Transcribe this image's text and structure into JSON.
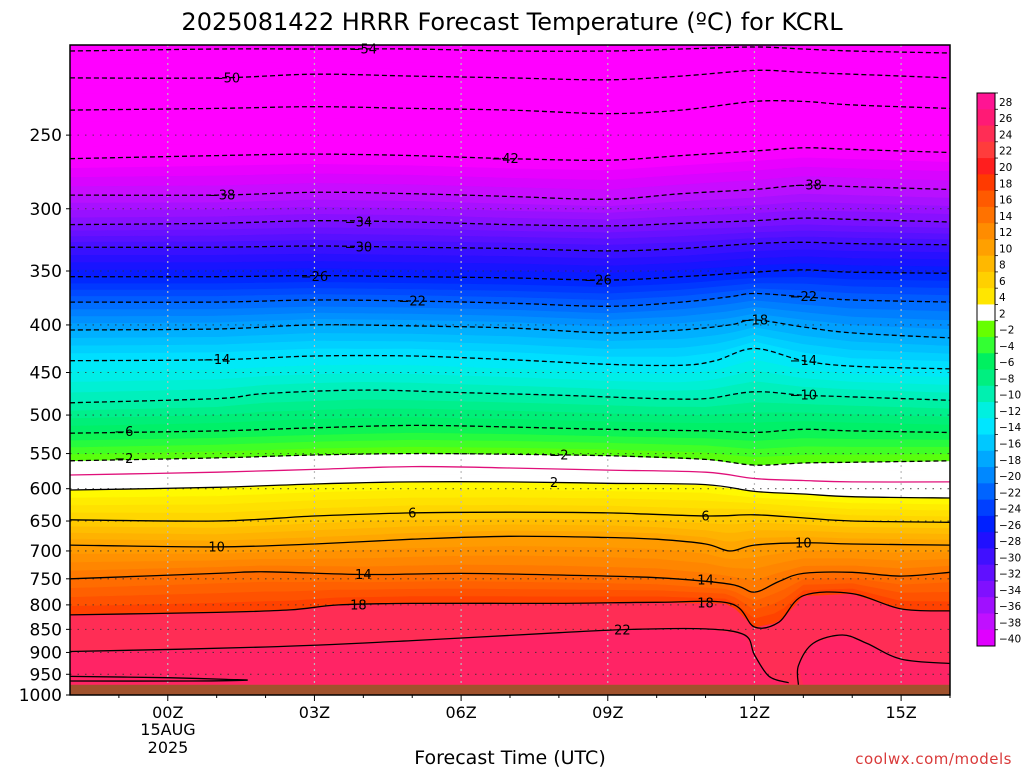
{
  "chart_data": {
    "type": "heatmap",
    "title": "2025081422 HRRR Forecast Temperature (ºC) for KCRL",
    "xlabel": "Forecast Time (UTC)",
    "ylabel": "",
    "x_ticks": [
      "00Z",
      "03Z",
      "06Z",
      "09Z",
      "12Z",
      "15Z"
    ],
    "x_hours": [
      0,
      3,
      6,
      9,
      12,
      15
    ],
    "x_range_hours": [
      -2,
      16
    ],
    "date_label": [
      "15AUG",
      "2025"
    ],
    "y_scale": "log-pressure",
    "y_range_hpa": [
      1000,
      200
    ],
    "y_ticks": [
      250,
      300,
      350,
      400,
      450,
      500,
      550,
      600,
      650,
      700,
      750,
      800,
      850,
      900,
      950,
      1000
    ],
    "ground_color": "#a0522d",
    "ground_level_hpa": 975,
    "colorbar": {
      "levels": [
        28,
        26,
        24,
        22,
        20,
        18,
        16,
        14,
        12,
        10,
        8,
        6,
        4,
        2,
        -2,
        -4,
        -6,
        -8,
        -10,
        -12,
        -14,
        -16,
        -18,
        -20,
        -22,
        -24,
        -26,
        -28,
        -30,
        -32,
        -34,
        -36,
        -38,
        -40
      ],
      "labels": [
        "28",
        "26",
        "24",
        "22",
        "20",
        "18",
        "16",
        "14",
        "12",
        "10",
        "8",
        "6",
        "4",
        "2",
        "−2",
        "−4",
        "−6",
        "−8",
        "−10",
        "−12",
        "−14",
        "−16",
        "−18",
        "−20",
        "−22",
        "−24",
        "−26",
        "−28",
        "−30",
        "−32",
        "−34",
        "−36",
        "−38",
        "−40"
      ]
    },
    "isotherms": [
      {
        "value": 22,
        "label": "22",
        "style": "solid",
        "points": [
          [
            -2,
            898
          ],
          [
            2,
            888
          ],
          [
            5,
            874
          ],
          [
            8,
            857
          ],
          [
            9.5,
            850
          ],
          [
            11,
            849
          ],
          [
            11.8,
            862
          ],
          [
            12.0,
            905
          ],
          [
            12.3,
            955
          ],
          [
            12.7,
            970
          ]
        ]
      },
      {
        "value": 18,
        "label": "18",
        "style": "solid",
        "points": [
          [
            -2,
            820
          ],
          [
            1,
            815
          ],
          [
            2.5,
            810
          ],
          [
            3.5,
            800
          ],
          [
            5,
            797
          ],
          [
            8,
            797
          ],
          [
            10,
            795
          ],
          [
            11.5,
            797
          ],
          [
            12,
            845
          ],
          [
            12.5,
            835
          ],
          [
            13,
            782
          ],
          [
            14,
            778
          ],
          [
            15,
            808
          ],
          [
            16,
            812
          ]
        ]
      },
      {
        "value": 14,
        "label": "14",
        "style": "solid",
        "points": [
          [
            -2,
            750
          ],
          [
            1,
            740
          ],
          [
            2,
            737
          ],
          [
            4,
            742
          ],
          [
            6,
            740
          ],
          [
            8,
            743
          ],
          [
            10,
            748
          ],
          [
            11.5,
            760
          ],
          [
            12,
            775
          ],
          [
            12.5,
            755
          ],
          [
            13,
            740
          ],
          [
            14,
            738
          ],
          [
            15,
            745
          ],
          [
            16,
            738
          ]
        ]
      },
      {
        "value": 10,
        "label": "10",
        "style": "solid",
        "points": [
          [
            -2,
            690
          ],
          [
            1,
            693
          ],
          [
            3,
            688
          ],
          [
            5,
            680
          ],
          [
            7,
            675
          ],
          [
            9,
            677
          ],
          [
            10,
            680
          ],
          [
            11,
            688
          ],
          [
            11.5,
            700
          ],
          [
            12,
            690
          ],
          [
            13,
            686
          ],
          [
            14,
            688
          ],
          [
            16,
            690
          ]
        ]
      },
      {
        "value": 6,
        "label": "6",
        "style": "solid",
        "points": [
          [
            -2,
            648
          ],
          [
            1,
            650
          ],
          [
            3,
            642
          ],
          [
            5,
            637
          ],
          [
            7,
            636
          ],
          [
            9,
            637
          ],
          [
            11,
            642
          ],
          [
            12,
            640
          ],
          [
            13,
            645
          ],
          [
            14,
            650
          ],
          [
            16,
            652
          ]
        ]
      },
      {
        "value": 2,
        "label": "2",
        "style": "solid",
        "points": [
          [
            -2,
            602
          ],
          [
            1,
            598
          ],
          [
            3,
            593
          ],
          [
            5,
            590
          ],
          [
            7,
            590
          ],
          [
            9,
            592
          ],
          [
            11,
            594
          ],
          [
            12,
            604
          ],
          [
            13,
            608
          ],
          [
            14,
            612
          ],
          [
            16,
            614
          ]
        ]
      },
      {
        "value": -2,
        "label": "2",
        "style": "dashed",
        "points": [
          [
            -2,
            560
          ],
          [
            1,
            556
          ],
          [
            3,
            552
          ],
          [
            5,
            550
          ],
          [
            7,
            551
          ],
          [
            9,
            553
          ],
          [
            11,
            558
          ],
          [
            12,
            566
          ],
          [
            13,
            563
          ],
          [
            14,
            562
          ],
          [
            16,
            560
          ]
        ]
      },
      {
        "value": -6,
        "label": "6",
        "style": "dashed",
        "points": [
          [
            -2,
            523
          ],
          [
            1,
            520
          ],
          [
            3,
            516
          ],
          [
            5,
            513
          ],
          [
            7,
            515
          ],
          [
            9,
            518
          ],
          [
            11,
            520
          ],
          [
            12,
            522
          ],
          [
            13,
            518
          ],
          [
            14,
            520
          ],
          [
            16,
            522
          ]
        ]
      },
      {
        "value": -10,
        "label": "10",
        "style": "dashed",
        "points": [
          [
            -2,
            485
          ],
          [
            1,
            480
          ],
          [
            2,
            474
          ],
          [
            4,
            470
          ],
          [
            6,
            473
          ],
          [
            8,
            476
          ],
          [
            10,
            480
          ],
          [
            11,
            480
          ],
          [
            12,
            472
          ],
          [
            13,
            476
          ],
          [
            14,
            478
          ],
          [
            16,
            482
          ]
        ]
      },
      {
        "value": -14,
        "label": "14",
        "style": "dashed",
        "points": [
          [
            -2,
            437
          ],
          [
            1,
            436
          ],
          [
            3,
            432
          ],
          [
            5,
            432
          ],
          [
            7,
            436
          ],
          [
            9,
            441
          ],
          [
            10.5,
            442
          ],
          [
            11.2,
            437
          ],
          [
            12,
            424
          ],
          [
            13,
            437
          ],
          [
            14,
            443
          ],
          [
            16,
            446
          ]
        ]
      },
      {
        "value": -18,
        "label": "18",
        "style": "dashed",
        "points": [
          [
            -2,
            405
          ],
          [
            1,
            404
          ],
          [
            3,
            400
          ],
          [
            5,
            401
          ],
          [
            7,
            403
          ],
          [
            9,
            408
          ],
          [
            10.5,
            405
          ],
          [
            11.5,
            400
          ],
          [
            12,
            395
          ],
          [
            13,
            402
          ],
          [
            14,
            408
          ],
          [
            16,
            413
          ]
        ]
      },
      {
        "value": -22,
        "label": "22",
        "style": "dashed",
        "points": [
          [
            -2,
            378
          ],
          [
            1,
            378
          ],
          [
            3,
            376
          ],
          [
            5,
            377
          ],
          [
            7,
            379
          ],
          [
            9,
            382
          ],
          [
            10.5,
            378
          ],
          [
            11.5,
            373
          ],
          [
            12,
            370
          ],
          [
            13,
            373
          ],
          [
            14,
            376
          ],
          [
            16,
            378
          ]
        ]
      },
      {
        "value": -26,
        "label": "26",
        "style": "dashed",
        "points": [
          [
            -2,
            355
          ],
          [
            1,
            355
          ],
          [
            3,
            354
          ],
          [
            5,
            355
          ],
          [
            7,
            356
          ],
          [
            9,
            358
          ],
          [
            10.5,
            355
          ],
          [
            12,
            351
          ],
          [
            13,
            349
          ],
          [
            14,
            351
          ],
          [
            16,
            352
          ]
        ]
      },
      {
        "value": -30,
        "label": "30",
        "style": "dashed",
        "points": [
          [
            -2,
            330
          ],
          [
            1,
            330
          ],
          [
            3,
            329
          ],
          [
            5,
            330
          ],
          [
            7,
            331
          ],
          [
            9,
            333
          ],
          [
            10.5,
            331
          ],
          [
            12,
            327
          ],
          [
            13,
            326
          ],
          [
            14,
            327
          ],
          [
            16,
            328
          ]
        ]
      },
      {
        "value": -34,
        "label": "34",
        "style": "dashed",
        "points": [
          [
            -2,
            312
          ],
          [
            1,
            311
          ],
          [
            3,
            309
          ],
          [
            5,
            310
          ],
          [
            7,
            312
          ],
          [
            9,
            313
          ],
          [
            10.5,
            311
          ],
          [
            12,
            309
          ],
          [
            13,
            307
          ],
          [
            14,
            308
          ],
          [
            16,
            310
          ]
        ]
      },
      {
        "value": -38,
        "label": "38",
        "style": "dashed",
        "points": [
          [
            -2,
            290
          ],
          [
            1,
            290
          ],
          [
            3,
            288
          ],
          [
            5,
            289
          ],
          [
            7,
            291
          ],
          [
            9,
            293
          ],
          [
            10.5,
            289
          ],
          [
            12,
            286
          ],
          [
            13,
            283
          ],
          [
            14,
            284
          ],
          [
            16,
            286
          ]
        ]
      },
      {
        "value": -42,
        "label": "42",
        "style": "dashed",
        "points": [
          [
            -2,
            265
          ],
          [
            1,
            263
          ],
          [
            3,
            262
          ],
          [
            5,
            263
          ],
          [
            7,
            265
          ],
          [
            9,
            266
          ],
          [
            10.5,
            263
          ],
          [
            12,
            260
          ],
          [
            13,
            258
          ],
          [
            14,
            259
          ],
          [
            16,
            261
          ]
        ]
      },
      {
        "value": -46,
        "label": "",
        "style": "dashed",
        "points": [
          [
            -2,
            235
          ],
          [
            1,
            234
          ],
          [
            3,
            233
          ],
          [
            5,
            234
          ],
          [
            7,
            235
          ],
          [
            9,
            237
          ],
          [
            10.5,
            235
          ],
          [
            12,
            230
          ],
          [
            13,
            230
          ],
          [
            14,
            232
          ],
          [
            16,
            234
          ]
        ]
      },
      {
        "value": -50,
        "label": "50",
        "style": "dashed",
        "points": [
          [
            -2,
            217
          ],
          [
            1,
            217
          ],
          [
            3,
            215
          ],
          [
            5,
            216
          ],
          [
            7,
            217
          ],
          [
            9,
            218
          ],
          [
            10.5,
            216
          ],
          [
            12,
            213
          ],
          [
            13,
            214
          ],
          [
            14,
            215
          ],
          [
            16,
            217
          ]
        ]
      },
      {
        "value": -54,
        "label": "54",
        "style": "dashed",
        "points": [
          [
            -2,
            203
          ],
          [
            1,
            202
          ],
          [
            3,
            202
          ],
          [
            5,
            202
          ],
          [
            7,
            203
          ],
          [
            9,
            203
          ],
          [
            10.5,
            202
          ],
          [
            12,
            201
          ],
          [
            13,
            202
          ],
          [
            14,
            203
          ],
          [
            16,
            204
          ]
        ]
      }
    ],
    "isotherm_labels": [
      {
        "text": "54",
        "x": 4.0,
        "p": 202
      },
      {
        "text": "50",
        "x": 1.2,
        "p": 217
      },
      {
        "text": "42",
        "x": 6.9,
        "p": 265
      },
      {
        "text": "38",
        "x": 13.1,
        "p": 283
      },
      {
        "text": "38",
        "x": 1.1,
        "p": 290
      },
      {
        "text": "34",
        "x": 3.9,
        "p": 310
      },
      {
        "text": "30",
        "x": 3.9,
        "p": 330
      },
      {
        "text": "26",
        "x": 3.0,
        "p": 355
      },
      {
        "text": "26",
        "x": 8.8,
        "p": 358
      },
      {
        "text": "22",
        "x": 5.0,
        "p": 377
      },
      {
        "text": "22",
        "x": 13.0,
        "p": 373
      },
      {
        "text": "18",
        "x": 12.0,
        "p": 395
      },
      {
        "text": "14",
        "x": 1.0,
        "p": 436
      },
      {
        "text": "14",
        "x": 13.0,
        "p": 437
      },
      {
        "text": "10",
        "x": 13.0,
        "p": 476
      },
      {
        "text": "6",
        "x": -0.9,
        "p": 521
      },
      {
        "text": "2",
        "x": -0.9,
        "p": 557
      },
      {
        "text": "2",
        "x": 8.0,
        "p": 552
      },
      {
        "text": "2",
        "x": 7.9,
        "p": 591
      },
      {
        "text": "6",
        "x": 5.0,
        "p": 637
      },
      {
        "text": "6",
        "x": 11.0,
        "p": 642
      },
      {
        "text": "10",
        "x": 1.0,
        "p": 693
      },
      {
        "text": "10",
        "x": 13.0,
        "p": 686
      },
      {
        "text": "14",
        "x": 4.0,
        "p": 742
      },
      {
        "text": "14",
        "x": 11.0,
        "p": 752
      },
      {
        "text": "18",
        "x": 3.9,
        "p": 800
      },
      {
        "text": "18",
        "x": 11.0,
        "p": 796
      },
      {
        "text": "22",
        "x": 9.3,
        "p": 851
      }
    ]
  },
  "credit": "coolwx.com/models",
  "colors": {
    "magenta": "#ff00ff",
    "white_band": "#ffffff",
    "ground": "#a0522d"
  }
}
